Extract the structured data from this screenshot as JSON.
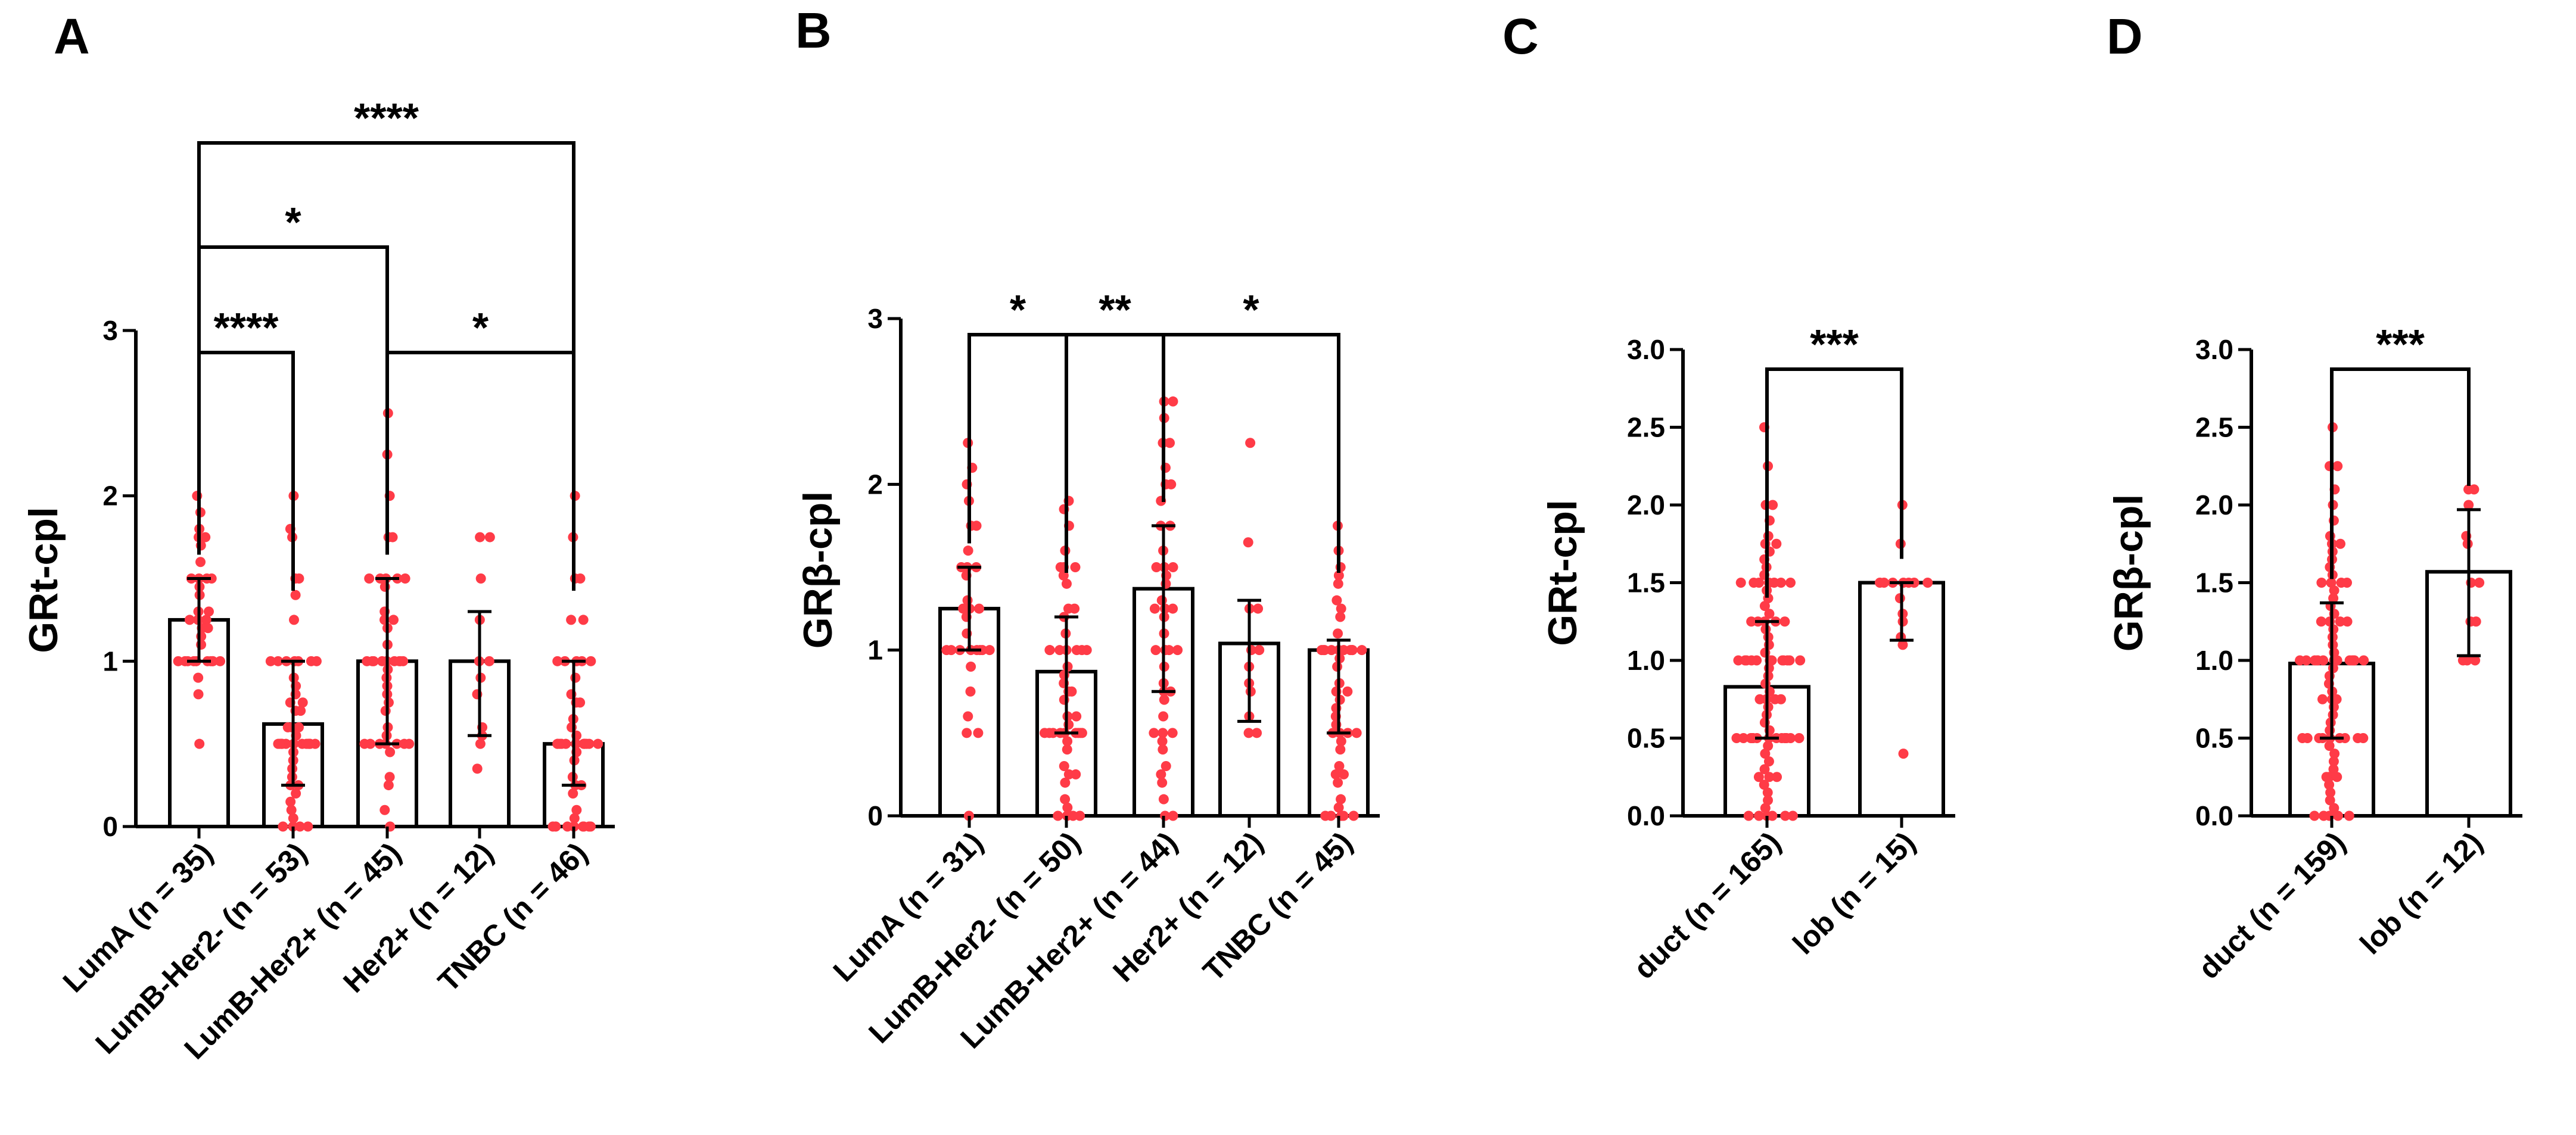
{
  "colors": {
    "points": "#ff3b47",
    "bars": "#000000",
    "background": "#ffffff"
  },
  "chart_data": [
    {
      "panel": "A",
      "type": "bar",
      "ylabel": "GRt-cpl",
      "ylim": [
        0,
        3
      ],
      "yticks": [
        "0",
        "1",
        "2",
        "3"
      ],
      "categories": [
        "LumA (n = 35)",
        "LumB-Her2- (n = 53)",
        "LumB-Her2+ (n = 45)",
        "Her2+ (n = 12)",
        "TNBC (n = 46)"
      ],
      "values": [
        1.25,
        0.62,
        1.0,
        1.0,
        0.5
      ],
      "error_low": [
        1.0,
        0.25,
        0.5,
        0.55,
        0.25
      ],
      "error_high": [
        1.5,
        1.0,
        1.5,
        1.3,
        1.0
      ],
      "points": [
        [
          2.0,
          1.9,
          1.8,
          1.75,
          1.75,
          1.7,
          1.6,
          1.5,
          1.5,
          1.5,
          1.5,
          1.45,
          1.4,
          1.3,
          1.3,
          1.25,
          1.25,
          1.25,
          1.2,
          1.2,
          1.15,
          1.1,
          1.0,
          1.0,
          1.0,
          1.0,
          1.0,
          1.0,
          1.0,
          1.0,
          1.0,
          1.0,
          0.9,
          0.8,
          0.5
        ],
        [
          2.0,
          1.8,
          1.75,
          1.5,
          1.5,
          1.4,
          1.25,
          1.0,
          1.0,
          1.0,
          1.0,
          1.0,
          1.0,
          1.0,
          0.9,
          0.85,
          0.8,
          0.75,
          0.75,
          0.7,
          0.6,
          0.6,
          0.55,
          0.5,
          0.5,
          0.5,
          0.5,
          0.5,
          0.5,
          0.5,
          0.5,
          0.5,
          0.5,
          0.5,
          0.5,
          0.5,
          0.5,
          0.45,
          0.4,
          0.35,
          0.3,
          0.25,
          0.25,
          0.2,
          0.15,
          0.1,
          0.05,
          0.0,
          0.0,
          0.0,
          0.0,
          0.6,
          0.7
        ],
        [
          2.5,
          2.25,
          2.0,
          1.75,
          1.75,
          1.5,
          1.5,
          1.5,
          1.5,
          1.5,
          1.45,
          1.3,
          1.25,
          1.25,
          1.2,
          1.1,
          1.0,
          1.0,
          1.0,
          1.0,
          1.0,
          1.0,
          1.0,
          1.0,
          1.0,
          0.95,
          0.9,
          0.85,
          0.8,
          0.75,
          0.7,
          0.6,
          0.55,
          0.5,
          0.5,
          0.5,
          0.5,
          0.5,
          0.5,
          0.5,
          0.45,
          0.3,
          0.25,
          0.1,
          0.0
        ],
        [
          1.75,
          1.75,
          1.5,
          1.25,
          1.0,
          1.0,
          0.9,
          0.8,
          0.6,
          0.55,
          0.5,
          0.35
        ],
        [
          2.0,
          1.75,
          1.5,
          1.5,
          1.25,
          1.25,
          1.0,
          1.0,
          1.0,
          1.0,
          1.0,
          0.9,
          0.8,
          0.75,
          0.75,
          0.6,
          0.55,
          0.5,
          0.5,
          0.5,
          0.5,
          0.5,
          0.5,
          0.5,
          0.5,
          0.5,
          0.5,
          0.5,
          0.5,
          0.45,
          0.4,
          0.3,
          0.25,
          0.25,
          0.2,
          0.1,
          0.05,
          0.0,
          0.0,
          0.0,
          0.0,
          0.0,
          0.0,
          0.0,
          0.0,
          0.65
        ]
      ],
      "comparisons": [
        {
          "from": 0,
          "to": 1,
          "label": "****"
        },
        {
          "from": 0,
          "to": 2,
          "label": "*"
        },
        {
          "from": 0,
          "to": 4,
          "label": "****"
        },
        {
          "from": 2,
          "to": 4,
          "label": "*"
        }
      ]
    },
    {
      "panel": "B",
      "type": "bar",
      "ylabel": "GRβ-cpl",
      "ylim": [
        0,
        3
      ],
      "yticks": [
        "0",
        "1",
        "2",
        "3"
      ],
      "categories": [
        "LumA (n = 31)",
        "LumB-Her2- (n = 50)",
        "LumB-Her2+ (n = 44)",
        "Her2+ (n = 12)",
        "TNBC (n = 45)"
      ],
      "values": [
        1.25,
        0.87,
        1.37,
        1.04,
        1.0
      ],
      "error_low": [
        1.0,
        0.5,
        0.75,
        0.57,
        0.5
      ],
      "error_high": [
        1.5,
        1.2,
        1.75,
        1.3,
        1.06
      ],
      "points": [
        [
          2.25,
          2.1,
          2.0,
          1.9,
          1.75,
          1.75,
          1.6,
          1.5,
          1.5,
          1.5,
          1.45,
          1.3,
          1.25,
          1.25,
          1.25,
          1.2,
          1.1,
          1.0,
          1.0,
          1.0,
          1.0,
          1.0,
          1.0,
          1.0,
          1.0,
          0.9,
          0.75,
          0.6,
          0.5,
          0.5,
          0.0
        ],
        [
          1.9,
          1.85,
          1.75,
          1.6,
          1.5,
          1.5,
          1.5,
          1.45,
          1.4,
          1.25,
          1.25,
          1.2,
          1.1,
          1.0,
          1.0,
          1.0,
          1.0,
          1.0,
          1.0,
          1.0,
          0.9,
          0.85,
          0.8,
          0.75,
          0.75,
          0.7,
          0.6,
          0.55,
          0.5,
          0.5,
          0.5,
          0.5,
          0.5,
          0.5,
          0.5,
          0.5,
          0.5,
          0.45,
          0.4,
          0.3,
          0.25,
          0.25,
          0.2,
          0.1,
          0.05,
          0.0,
          0.0,
          0.0,
          0.0,
          0.6
        ],
        [
          2.5,
          2.5,
          2.4,
          2.25,
          2.25,
          2.1,
          2.0,
          2.0,
          1.9,
          1.75,
          1.75,
          1.6,
          1.5,
          1.5,
          1.5,
          1.45,
          1.4,
          1.3,
          1.25,
          1.25,
          1.25,
          1.2,
          1.1,
          1.0,
          1.0,
          1.0,
          1.0,
          0.9,
          0.8,
          0.75,
          0.75,
          0.7,
          0.6,
          0.5,
          0.5,
          0.5,
          0.45,
          0.4,
          0.3,
          0.25,
          0.2,
          0.1,
          0.0,
          0.0
        ],
        [
          2.25,
          1.65,
          1.25,
          1.25,
          1.0,
          1.0,
          0.9,
          0.8,
          0.75,
          0.6,
          0.5,
          0.5
        ],
        [
          1.75,
          1.6,
          1.5,
          1.45,
          1.4,
          1.3,
          1.25,
          1.2,
          1.1,
          1.0,
          1.0,
          1.0,
          1.0,
          1.0,
          1.0,
          1.0,
          1.0,
          1.0,
          1.0,
          0.95,
          0.9,
          0.8,
          0.75,
          0.75,
          0.7,
          0.6,
          0.5,
          0.5,
          0.5,
          0.5,
          0.45,
          0.4,
          0.3,
          0.25,
          0.25,
          0.2,
          0.1,
          0.05,
          0.0,
          0.0,
          0.0,
          0.0,
          0.0,
          0.55,
          0.65
        ]
      ],
      "comparisons": [
        {
          "from": 0,
          "to": 1,
          "label": "*"
        },
        {
          "from": 1,
          "to": 2,
          "label": "**"
        },
        {
          "from": 2,
          "to": 4,
          "label": "*"
        }
      ]
    },
    {
      "panel": "C",
      "type": "bar",
      "ylabel": "GRt-cpl",
      "ylim": [
        0,
        3
      ],
      "yticks": [
        "0.0",
        "0.5",
        "1.0",
        "1.5",
        "2.0",
        "2.5",
        "3.0"
      ],
      "categories": [
        "duct (n = 165)",
        "lob (n = 15)"
      ],
      "values": [
        0.83,
        1.5
      ],
      "error_low": [
        0.5,
        1.13
      ],
      "error_high": [
        1.25,
        1.5
      ],
      "points": [
        [
          2.5,
          2.25,
          2.0,
          2.0,
          1.9,
          1.8,
          1.75,
          1.75,
          1.7,
          1.65,
          1.6,
          1.55,
          1.5,
          1.5,
          1.5,
          1.5,
          1.5,
          1.5,
          1.5,
          1.45,
          1.4,
          1.35,
          1.3,
          1.25,
          1.25,
          1.25,
          1.25,
          1.25,
          1.2,
          1.15,
          1.1,
          1.05,
          1.0,
          1.0,
          1.0,
          1.0,
          1.0,
          1.0,
          1.0,
          1.0,
          1.0,
          1.0,
          1.0,
          1.0,
          0.95,
          0.9,
          0.85,
          0.8,
          0.75,
          0.75,
          0.75,
          0.75,
          0.7,
          0.65,
          0.6,
          0.55,
          0.5,
          0.5,
          0.5,
          0.5,
          0.5,
          0.5,
          0.5,
          0.5,
          0.5,
          0.5,
          0.5,
          0.5,
          0.5,
          0.5,
          0.45,
          0.4,
          0.35,
          0.3,
          0.25,
          0.25,
          0.25,
          0.2,
          0.15,
          0.1,
          0.05,
          0.0,
          0.0,
          0.0,
          0.0,
          0.0,
          0.0
        ],
        [
          2.0,
          1.75,
          1.5,
          1.5,
          1.5,
          1.5,
          1.5,
          1.5,
          1.5,
          1.4,
          1.3,
          1.25,
          1.15,
          1.1,
          0.4
        ]
      ],
      "comparisons": [
        {
          "from": 0,
          "to": 1,
          "label": "***"
        }
      ]
    },
    {
      "panel": "D",
      "type": "bar",
      "ylabel": "GRβ-cpl",
      "ylim": [
        0,
        3
      ],
      "yticks": [
        "0.0",
        "0.5",
        "1.0",
        "1.5",
        "2.0",
        "2.5",
        "3.0"
      ],
      "categories": [
        "duct (n = 159)",
        "lob (n = 12)"
      ],
      "values": [
        0.98,
        1.57
      ],
      "error_low": [
        0.5,
        1.03
      ],
      "error_high": [
        1.37,
        1.97
      ],
      "points": [
        [
          2.5,
          2.25,
          2.25,
          2.1,
          2.0,
          1.9,
          1.8,
          1.75,
          1.75,
          1.7,
          1.65,
          1.6,
          1.55,
          1.5,
          1.5,
          1.5,
          1.5,
          1.45,
          1.4,
          1.35,
          1.3,
          1.25,
          1.25,
          1.25,
          1.25,
          1.2,
          1.15,
          1.1,
          1.05,
          1.0,
          1.0,
          1.0,
          1.0,
          1.0,
          1.0,
          1.0,
          1.0,
          1.0,
          1.0,
          1.0,
          1.0,
          1.0,
          0.95,
          0.9,
          0.85,
          0.8,
          0.75,
          0.75,
          0.75,
          0.7,
          0.65,
          0.6,
          0.55,
          0.5,
          0.5,
          0.5,
          0.5,
          0.5,
          0.5,
          0.5,
          0.5,
          0.5,
          0.45,
          0.4,
          0.35,
          0.3,
          0.25,
          0.25,
          0.25,
          0.2,
          0.15,
          0.1,
          0.05,
          0.0,
          0.0,
          0.0,
          0.0,
          0.0
        ],
        [
          2.1,
          2.1,
          2.0,
          1.8,
          1.75,
          1.5,
          1.5,
          1.25,
          1.25,
          1.0,
          1.0,
          1.0
        ]
      ],
      "comparisons": [
        {
          "from": 0,
          "to": 1,
          "label": "***"
        }
      ]
    }
  ]
}
